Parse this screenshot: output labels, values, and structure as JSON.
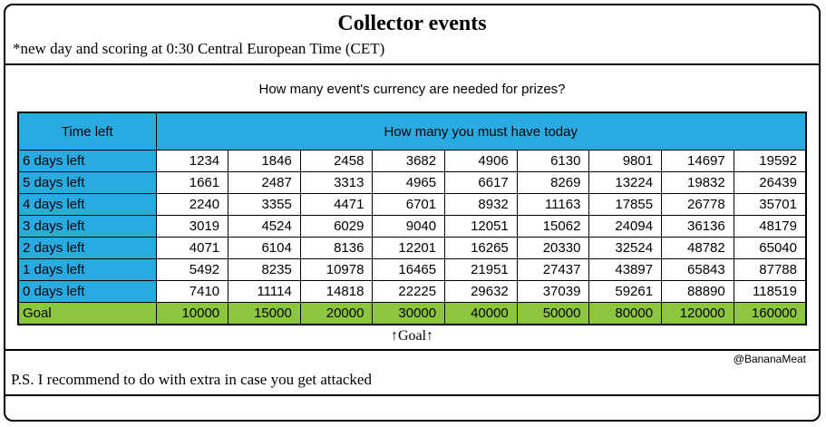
{
  "frame": {
    "title": "Collector events",
    "subtitle": "*new day and scoring at 0:30 Central European Time (CET)",
    "question": "How many event's currency are needed for prizes?",
    "goal_marker": "↑Goal↑",
    "credit": "@BananaMeat",
    "ps_note": "P.S. I recommend to do with extra in case you get attacked"
  },
  "colors": {
    "header_blue": "#29ABE2",
    "goal_green": "#8CC63F",
    "border": "#000000"
  },
  "chart_data": {
    "type": "table",
    "title": "Collector events",
    "row_header": "Time left",
    "columns_header": "How many you must have today",
    "rows": [
      {
        "label": "6 days left",
        "values": [
          1234,
          1846,
          2458,
          3682,
          4906,
          6130,
          9801,
          14697,
          19592
        ]
      },
      {
        "label": "5 days left",
        "values": [
          1661,
          2487,
          3313,
          4965,
          6617,
          8269,
          13224,
          19832,
          26439
        ]
      },
      {
        "label": "4 days left",
        "values": [
          2240,
          3355,
          4471,
          6701,
          8932,
          11163,
          17855,
          26778,
          35701
        ]
      },
      {
        "label": "3 days left",
        "values": [
          3019,
          4524,
          6029,
          9040,
          12051,
          15062,
          24094,
          36136,
          48179
        ]
      },
      {
        "label": "2 days left",
        "values": [
          4071,
          6104,
          8136,
          12201,
          16265,
          20330,
          32524,
          48782,
          65040
        ]
      },
      {
        "label": "1 days left",
        "values": [
          5492,
          8235,
          10978,
          16465,
          21951,
          27437,
          43897,
          65843,
          87788
        ]
      },
      {
        "label": "0 days left",
        "values": [
          7410,
          11114,
          14818,
          22225,
          29632,
          37039,
          59261,
          88890,
          118519
        ]
      }
    ],
    "goal_row": {
      "label": "Goal",
      "values": [
        10000,
        15000,
        20000,
        30000,
        40000,
        50000,
        80000,
        120000,
        160000
      ]
    }
  }
}
